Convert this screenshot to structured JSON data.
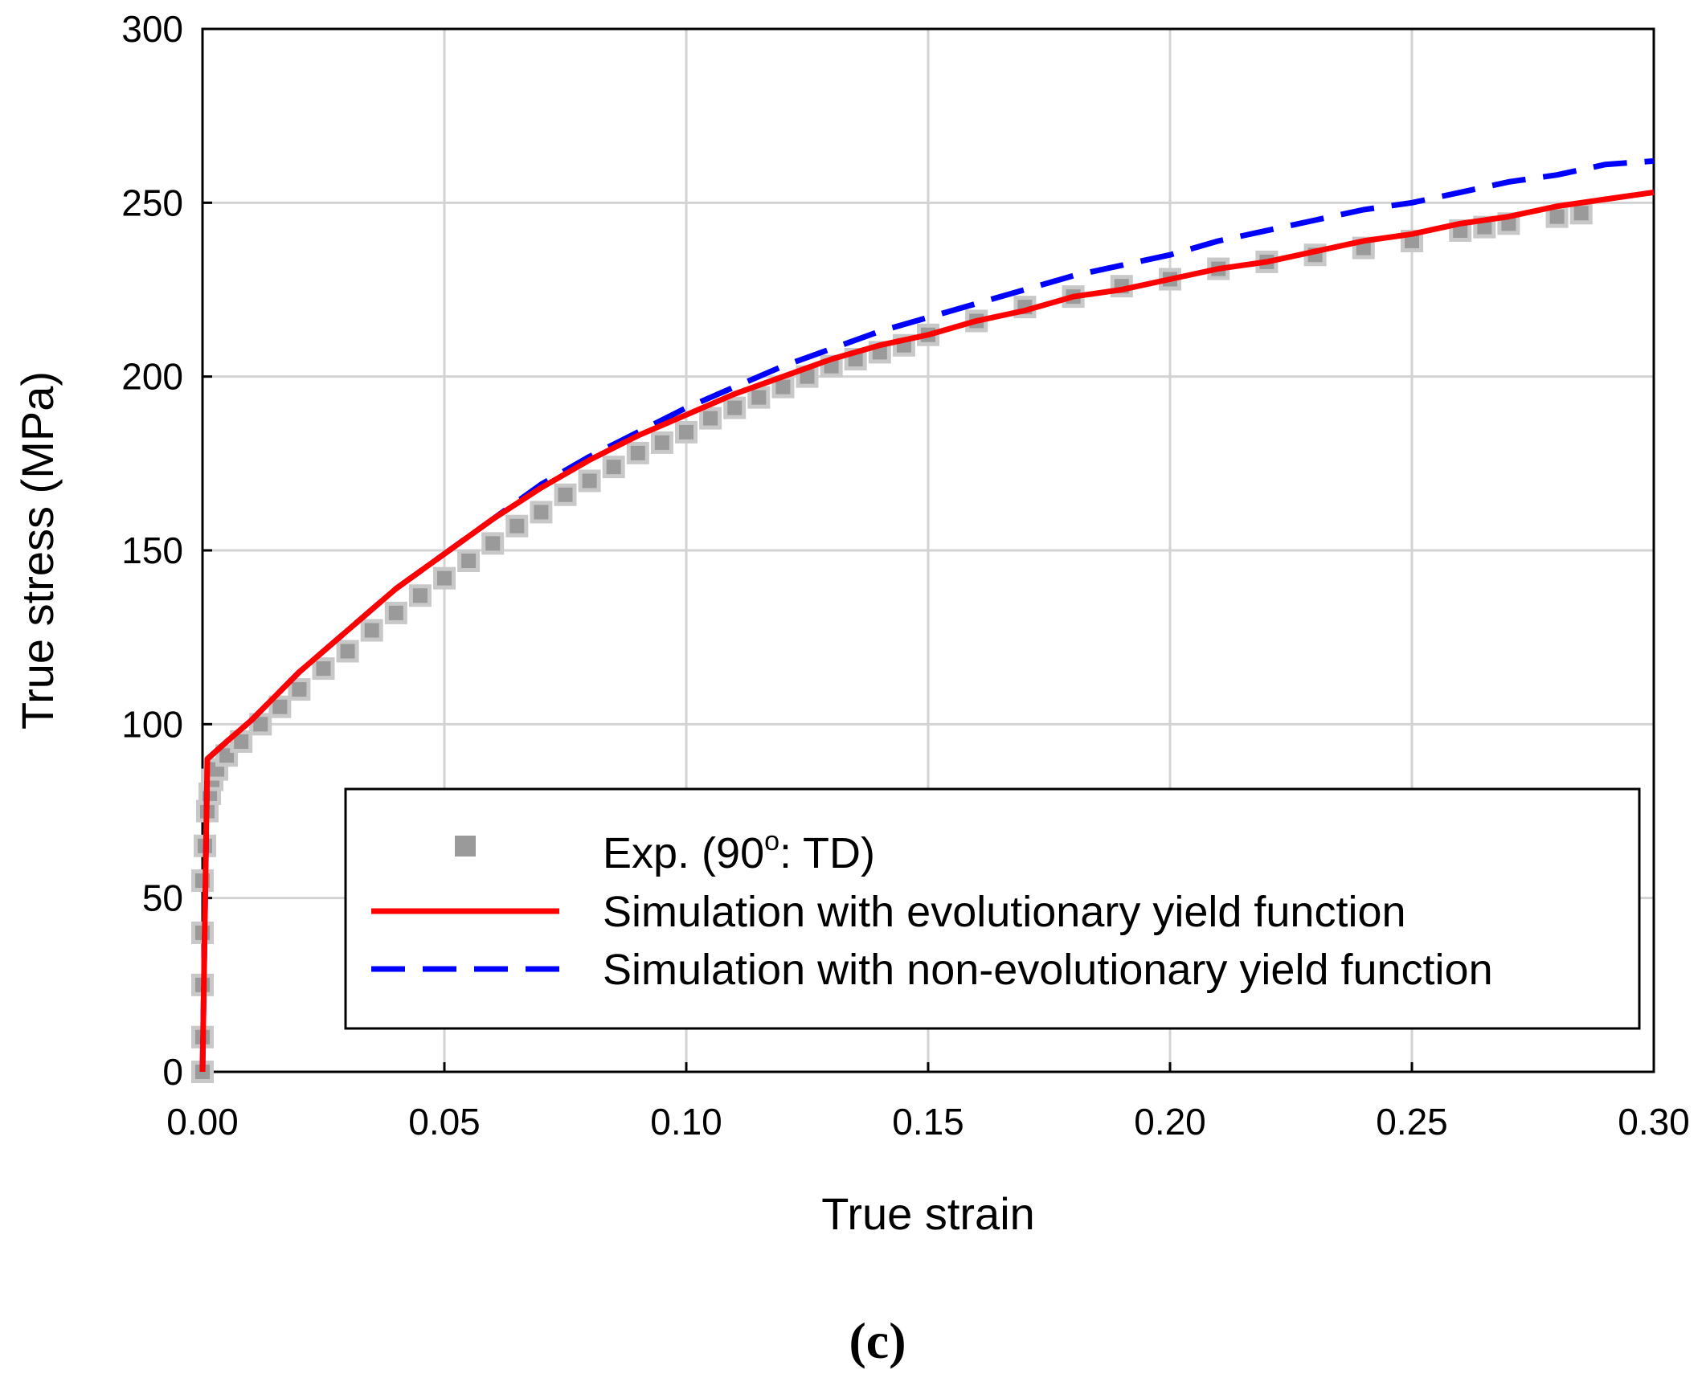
{
  "chart_data": {
    "type": "line",
    "title": "",
    "panel_label": "(c)",
    "xlabel": "True strain",
    "ylabel": "True stress (MPa)",
    "xlim": [
      0.0,
      0.3
    ],
    "ylim": [
      0,
      300
    ],
    "xticks": [
      0.0,
      0.05,
      0.1,
      0.15,
      0.2,
      0.25,
      0.3
    ],
    "xtick_labels": [
      "0.00",
      "0.05",
      "0.10",
      "0.15",
      "0.20",
      "0.25",
      "0.30"
    ],
    "yticks": [
      0,
      50,
      100,
      150,
      200,
      250,
      300
    ],
    "ytick_labels": [
      "0",
      "50",
      "100",
      "150",
      "200",
      "250",
      "300"
    ],
    "grid": true,
    "legend_position": "lower-right",
    "series": [
      {
        "name": "Exp. (90°: TD)",
        "label_main": "Exp. (90",
        "label_sup": "o",
        "label_tail": ": TD)",
        "kind": "markers",
        "color": "#9a9a9a",
        "x": [
          0.0,
          0.0,
          0.0,
          0.0,
          0.0,
          0.0005,
          0.001,
          0.0015,
          0.002,
          0.003,
          0.005,
          0.008,
          0.012,
          0.016,
          0.02,
          0.025,
          0.03,
          0.035,
          0.04,
          0.045,
          0.05,
          0.055,
          0.06,
          0.065,
          0.07,
          0.075,
          0.08,
          0.085,
          0.09,
          0.095,
          0.1,
          0.105,
          0.11,
          0.115,
          0.12,
          0.125,
          0.13,
          0.135,
          0.14,
          0.145,
          0.15,
          0.16,
          0.17,
          0.18,
          0.19,
          0.2,
          0.21,
          0.22,
          0.23,
          0.24,
          0.25,
          0.26,
          0.265,
          0.27,
          0.28,
          0.285
        ],
        "y": [
          0,
          10,
          25,
          40,
          55,
          65,
          75,
          80,
          84,
          87,
          91,
          95,
          100,
          105,
          110,
          116,
          121,
          127,
          132,
          137,
          142,
          147,
          152,
          157,
          161,
          166,
          170,
          174,
          178,
          181,
          184,
          188,
          191,
          194,
          197,
          200,
          203,
          205,
          207,
          209,
          212,
          216,
          220,
          223,
          226,
          228,
          231,
          233,
          235,
          237,
          239,
          242,
          243,
          244,
          246,
          247
        ]
      },
      {
        "name": "Simulation with evolutionary yield function",
        "kind": "solid",
        "color": "#ff0000",
        "x": [
          0.0,
          0.0005,
          0.001,
          0.005,
          0.01,
          0.02,
          0.03,
          0.04,
          0.05,
          0.06,
          0.07,
          0.08,
          0.09,
          0.1,
          0.11,
          0.12,
          0.13,
          0.14,
          0.15,
          0.16,
          0.17,
          0.18,
          0.19,
          0.2,
          0.21,
          0.22,
          0.23,
          0.24,
          0.25,
          0.26,
          0.27,
          0.28,
          0.29,
          0.3
        ],
        "y": [
          0,
          45,
          90,
          95,
          101,
          115,
          127,
          139,
          149,
          159,
          168,
          176,
          183,
          189,
          195,
          200,
          205,
          209,
          212,
          216,
          219,
          223,
          225,
          228,
          231,
          233,
          236,
          239,
          241,
          244,
          246,
          249,
          251,
          253
        ]
      },
      {
        "name": "Simulation with non-evolutionary yield function",
        "kind": "dashed",
        "color": "#0000ff",
        "x": [
          0.0,
          0.0005,
          0.001,
          0.005,
          0.01,
          0.02,
          0.03,
          0.04,
          0.05,
          0.06,
          0.07,
          0.08,
          0.09,
          0.1,
          0.11,
          0.12,
          0.13,
          0.14,
          0.15,
          0.16,
          0.17,
          0.18,
          0.19,
          0.2,
          0.21,
          0.22,
          0.23,
          0.24,
          0.25,
          0.26,
          0.27,
          0.28,
          0.29,
          0.3
        ],
        "y": [
          0,
          45,
          90,
          95,
          101,
          115,
          127,
          139,
          149,
          159,
          169,
          177,
          184,
          191,
          197,
          203,
          208,
          213,
          217,
          221,
          225,
          229,
          232,
          235,
          239,
          242,
          245,
          248,
          250,
          253,
          256,
          258,
          261,
          262
        ]
      }
    ]
  }
}
